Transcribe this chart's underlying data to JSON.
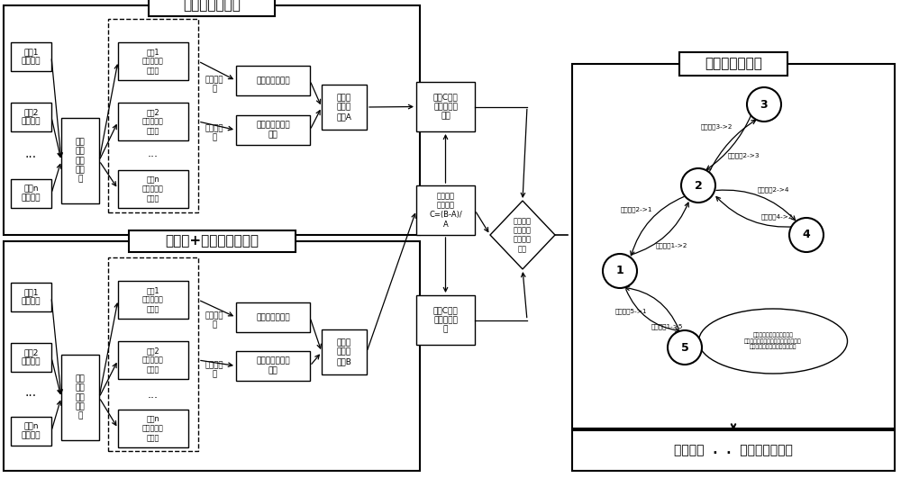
{
  "top_section1_title": "正常段时间序列",
  "top_section2_title": "正常段+告警段时间序列",
  "graph_model_title": "信息差异图模型",
  "bottom_title": "特征拟合  .  .  故障备选集排序",
  "comp_labels": [
    "组件1\n时间序列",
    "组件2\n时间序列",
    "组件n\n时间序列"
  ],
  "disc_label": [
    "连续",
    "时间",
    "序列",
    "离散",
    "化"
  ],
  "sub_labels": [
    "组件1\n离散区间时\n间序列",
    "组件2\n离散区间时\n间序列",
    "组件n\n离散区间时\n间序列"
  ],
  "single_input": "单序列输\n入",
  "double_input": "双序列输\n入",
  "self_entropy": "自信息熵计算器",
  "mutual_entropy": "互信息传递熵计\n算器",
  "mat_A": [
    "建立信",
    "息相关",
    "矩阵A"
  ],
  "mat_B": [
    "建立信",
    "息相关",
    "矩阵B"
  ],
  "proc1": [
    "矩阵C非对",
    "角线元素归",
    "一化"
  ],
  "proc2": [
    "建立信息",
    "差异矩阵",
    "C=(B-A)/",
    "A"
  ],
  "proc3": [
    "矩阵C对角",
    "线元素归一",
    "化"
  ],
  "diamond": "判断矩阵\n元素是否\n超过设定\n阈值",
  "node_labels": {
    "1": "1",
    "2": "2",
    "3": "3",
    "4": "4",
    "5": "5"
  },
  "edge_labels": {
    "2->3": "信息差异3->2",
    "3->2": "信息差异2->3",
    "1->2": "信息差异2->1",
    "2->1": "信息差异1->2",
    "4->2": "信息差异4->2",
    "2->4": "信息差异2->4",
    "5->1": "信息差异5->1",
    "1->5": "信息差异1->5"
  },
  "annotation": "每个节点包含自信息熵差异\n自信息差异越大代表节点不确定性的熵\n增，该节点发生故障可能性越大"
}
